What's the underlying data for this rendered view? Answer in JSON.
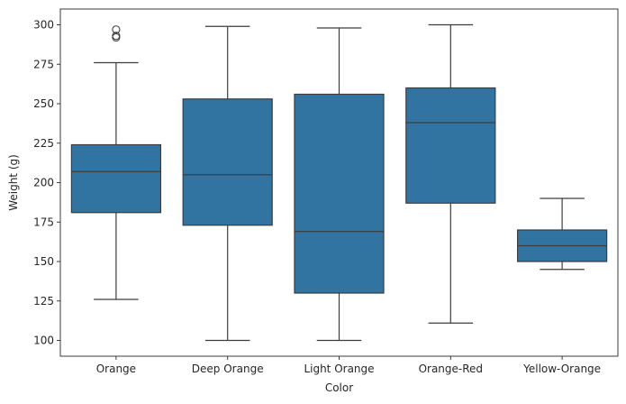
{
  "chart_data": {
    "type": "box",
    "xlabel": "Color",
    "ylabel": "Weight (g)",
    "ylim": [
      90,
      310
    ],
    "yticks": [
      100,
      125,
      150,
      175,
      200,
      225,
      250,
      275,
      300
    ],
    "grid": false,
    "box_color": "#3274a1",
    "line_color": "#3d3d3d",
    "categories": [
      "Orange",
      "Deep Orange",
      "Light Orange",
      "Orange-Red",
      "Yellow-Orange"
    ],
    "boxes": [
      {
        "category": "Orange",
        "whisker_low": 126,
        "q1": 181,
        "median": 207,
        "q3": 224,
        "whisker_high": 276,
        "outliers": [
          292,
          293,
          297
        ]
      },
      {
        "category": "Deep Orange",
        "whisker_low": 100,
        "q1": 173,
        "median": 205,
        "q3": 253,
        "whisker_high": 299,
        "outliers": []
      },
      {
        "category": "Light Orange",
        "whisker_low": 100,
        "q1": 130,
        "median": 169,
        "q3": 256,
        "whisker_high": 298,
        "outliers": []
      },
      {
        "category": "Orange-Red",
        "whisker_low": 111,
        "q1": 187,
        "median": 238,
        "q3": 260,
        "whisker_high": 300,
        "outliers": []
      },
      {
        "category": "Yellow-Orange",
        "whisker_low": 145,
        "q1": 150,
        "median": 160,
        "q3": 170,
        "whisker_high": 190,
        "outliers": []
      }
    ]
  }
}
